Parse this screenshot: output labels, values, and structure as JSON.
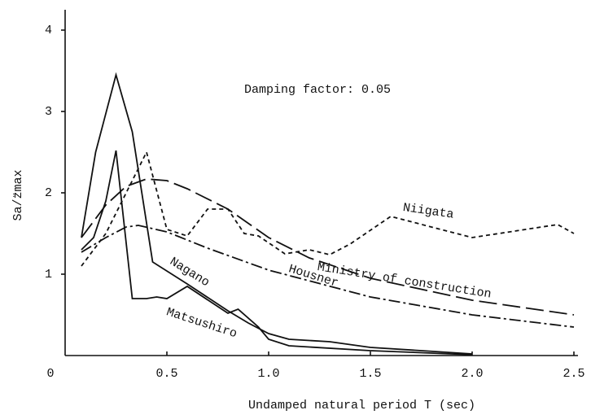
{
  "chart_data": {
    "type": "line",
    "annotation": "Damping factor: 0.05",
    "xlabel": "Undamped natural period  T (sec)",
    "ylabel": "Sa/z̈max",
    "xlim": [
      0,
      2.5
    ],
    "ylim": [
      0,
      4.2
    ],
    "xticks": [
      0,
      0.5,
      {
        "value": 1,
        "label": "1.0"
      },
      1.5,
      {
        "value": 2,
        "label": "2.0"
      },
      2.5
    ],
    "yticks": [
      1,
      2,
      3,
      4
    ],
    "series": [
      {
        "name": "Niigata",
        "color": "#111111",
        "dash": "dashed",
        "x": [
          0.08,
          0.2,
          0.3,
          0.4,
          0.5,
          0.6,
          0.7,
          0.8,
          0.88,
          0.95,
          1.08,
          1.2,
          1.3,
          1.4,
          1.6,
          2.0,
          2.42,
          2.5
        ],
        "values": [
          1.1,
          1.5,
          2.0,
          2.5,
          1.55,
          1.47,
          1.8,
          1.8,
          1.5,
          1.47,
          1.25,
          1.3,
          1.24,
          1.37,
          1.71,
          1.45,
          1.61,
          1.5
        ]
      },
      {
        "name": "Ministry of construction",
        "color": "#111111",
        "dash": "long-dashed",
        "x": [
          0.08,
          0.2,
          0.3,
          0.4,
          0.5,
          0.6,
          0.8,
          1.0,
          1.2,
          1.5,
          2.0,
          2.5
        ],
        "values": [
          1.45,
          1.85,
          2.08,
          2.17,
          2.15,
          2.05,
          1.8,
          1.45,
          1.2,
          0.95,
          0.68,
          0.5
        ]
      },
      {
        "name": "Housner",
        "color": "#111111",
        "dash": "dash-dot",
        "x": [
          0.08,
          0.2,
          0.3,
          0.36,
          0.5,
          0.7,
          1.0,
          1.5,
          2.0,
          2.5
        ],
        "values": [
          1.27,
          1.45,
          1.58,
          1.6,
          1.52,
          1.32,
          1.05,
          0.72,
          0.5,
          0.35
        ]
      },
      {
        "name": "Nagano",
        "color": "#111111",
        "dash": "solid",
        "x": [
          0.08,
          0.15,
          0.25,
          0.33,
          0.43,
          0.6,
          0.8,
          0.9,
          1.0,
          1.1,
          1.3,
          1.5,
          2.0
        ],
        "values": [
          1.45,
          2.5,
          3.45,
          2.75,
          1.15,
          0.88,
          0.55,
          0.4,
          0.27,
          0.2,
          0.17,
          0.1,
          0.02
        ]
      },
      {
        "name": "Matsushiro",
        "color": "#111111",
        "dash": "solid",
        "x": [
          0.08,
          0.14,
          0.2,
          0.25,
          0.33,
          0.4,
          0.45,
          0.5,
          0.6,
          0.8,
          0.85,
          0.95,
          1.0,
          1.1,
          1.5,
          2.0
        ],
        "values": [
          1.3,
          1.45,
          1.9,
          2.52,
          0.7,
          0.7,
          0.72,
          0.7,
          0.85,
          0.52,
          0.57,
          0.35,
          0.2,
          0.12,
          0.06,
          0.01
        ]
      }
    ]
  }
}
